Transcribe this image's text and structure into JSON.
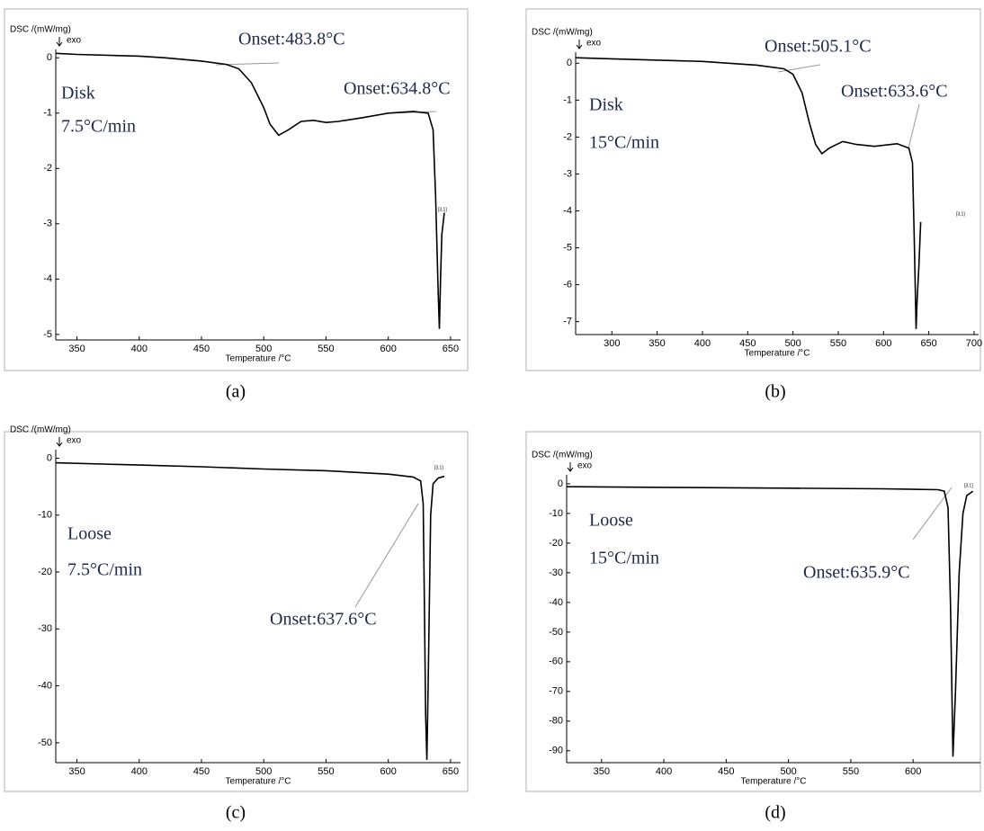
{
  "chart_data": [
    {
      "type": "line",
      "caption": "(a)",
      "ylabel": "DSC /(mW/mg)",
      "direction_label": "exo",
      "xlabel": "Temperature /°C",
      "annotations": [
        "Onset:483.8°C",
        "Onset:634.8°C",
        "Disk",
        "7.5°C/min",
        "[3,1]"
      ],
      "color": "#000000",
      "x": [
        333,
        350,
        400,
        420,
        450,
        470,
        480,
        490,
        500,
        505,
        512,
        520,
        530,
        540,
        550,
        560,
        580,
        600,
        620,
        632,
        636,
        638,
        640,
        641,
        642,
        643,
        645
      ],
      "values": [
        0.08,
        0.06,
        0.03,
        0.0,
        -0.06,
        -0.12,
        -0.2,
        -0.45,
        -0.9,
        -1.2,
        -1.4,
        -1.3,
        -1.15,
        -1.13,
        -1.17,
        -1.15,
        -1.08,
        -1.0,
        -0.97,
        -1.0,
        -1.3,
        -2.5,
        -4.2,
        -4.9,
        -4.0,
        -3.2,
        -2.8
      ],
      "xlim": [
        333,
        658
      ],
      "ylim": [
        -5.1,
        0.15
      ],
      "xticks": [
        350,
        400,
        450,
        500,
        550,
        600,
        650
      ],
      "yticks": [
        0,
        -1,
        -2,
        -3,
        -4,
        -5
      ]
    },
    {
      "type": "line",
      "caption": "(b)",
      "ylabel": "DSC /(mW/mg)",
      "direction_label": "exo",
      "xlabel": "Temperature /°C",
      "annotations": [
        "Onset:505.1°C",
        "Onset:633.6°C",
        "Disk",
        "15°C/min",
        "[3,1]"
      ],
      "color": "#000000",
      "x": [
        260,
        300,
        400,
        460,
        490,
        500,
        510,
        518,
        525,
        532,
        540,
        555,
        570,
        590,
        615,
        628,
        632,
        634,
        636,
        637,
        639,
        641
      ],
      "values": [
        0.15,
        0.12,
        0.05,
        -0.05,
        -0.15,
        -0.3,
        -0.8,
        -1.6,
        -2.2,
        -2.45,
        -2.3,
        -2.12,
        -2.2,
        -2.25,
        -2.18,
        -2.3,
        -2.7,
        -4.8,
        -7.2,
        -6.5,
        -5.5,
        -4.3
      ],
      "xlim": [
        260,
        705
      ],
      "ylim": [
        -7.35,
        0.3
      ],
      "xticks": [
        300,
        350,
        400,
        450,
        500,
        550,
        600,
        650,
        700
      ],
      "yticks": [
        0,
        -1,
        -2,
        -3,
        -4,
        -5,
        -6,
        -7
      ]
    },
    {
      "type": "line",
      "caption": "(c)",
      "ylabel": "DSC /(mW/mg)",
      "direction_label": "exo",
      "xlabel": "Temperature /°C",
      "annotations": [
        "Loose",
        "7.5°C/min",
        "Onset:637.6°C",
        "[3,1]"
      ],
      "color": "#000000",
      "x": [
        333,
        400,
        450,
        500,
        550,
        600,
        620,
        626,
        628,
        629,
        630,
        631,
        632,
        634,
        636,
        640,
        645
      ],
      "values": [
        -0.8,
        -1.2,
        -1.5,
        -1.9,
        -2.2,
        -2.8,
        -3.3,
        -4,
        -8,
        -25,
        -45,
        -53,
        -40,
        -10,
        -4.5,
        -3.5,
        -3.2
      ],
      "xlim": [
        333,
        658
      ],
      "ylim": [
        -53.5,
        1.5
      ],
      "xticks": [
        350,
        400,
        450,
        500,
        550,
        600,
        650
      ],
      "yticks": [
        0,
        -10,
        -20,
        -30,
        -40,
        -50
      ]
    },
    {
      "type": "line",
      "caption": "(d)",
      "ylabel": "DSC /(mW/mg)",
      "direction_label": "exo",
      "xlabel": "Temperature /°C",
      "annotations": [
        "Loose",
        "15°C/min",
        "Onset:635.9°C",
        "[3,1]"
      ],
      "color": "#000000",
      "x": [
        322,
        400,
        500,
        575,
        620,
        625,
        628,
        630,
        632,
        634,
        637,
        640,
        643,
        648
      ],
      "values": [
        -1.0,
        -1.2,
        -1.5,
        -1.7,
        -2,
        -2.5,
        -8,
        -40,
        -92,
        -70,
        -30,
        -10,
        -4,
        -2.5
      ],
      "xlim": [
        322,
        654
      ],
      "ylim": [
        -94,
        3
      ],
      "xticks": [
        350,
        400,
        450,
        500,
        550,
        600
      ],
      "yticks": [
        0,
        -10,
        -20,
        -30,
        -40,
        -50,
        -60,
        -70,
        -80,
        -90
      ]
    }
  ]
}
